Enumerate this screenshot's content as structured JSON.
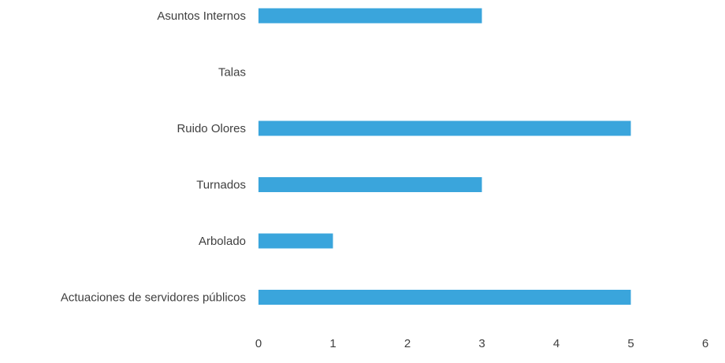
{
  "chart_data": {
    "type": "bar",
    "orientation": "horizontal",
    "categories": [
      "Asuntos Internos",
      "Talas",
      "Ruido Olores",
      "Turnados",
      "Arbolado",
      "Actuaciones de servidores públicos"
    ],
    "values": [
      3,
      0,
      5,
      3,
      1,
      5
    ],
    "xlim": [
      0,
      6
    ],
    "x_ticks": [
      "0",
      "1",
      "2",
      "3",
      "4",
      "5",
      "6"
    ],
    "title": "",
    "xlabel": "",
    "ylabel": "",
    "grid": false,
    "legend": "none",
    "bar_color": "#3aa5dc"
  }
}
